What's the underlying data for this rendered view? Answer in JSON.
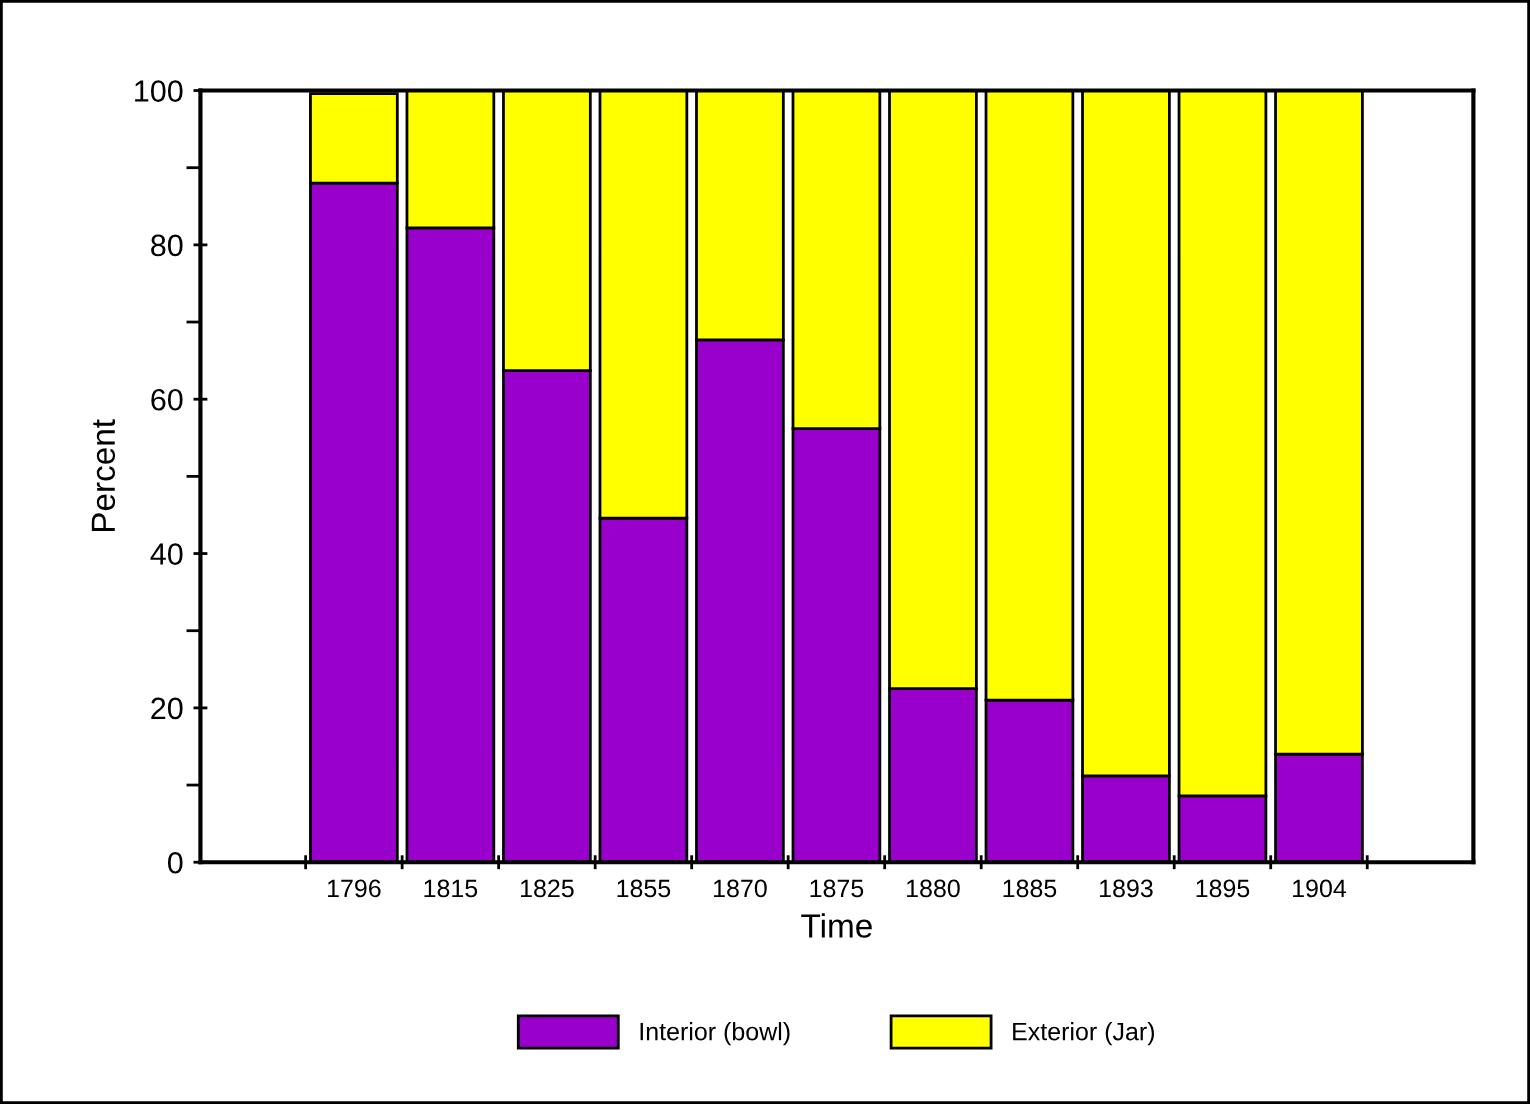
{
  "chart_data": {
    "type": "bar",
    "stacked": true,
    "xlabel": "Time",
    "ylabel": "Percent",
    "categories": [
      "1796",
      "1815",
      "1825",
      "1855",
      "1870",
      "1875",
      "1880",
      "1885",
      "1893",
      "1895",
      "1904"
    ],
    "series": [
      {
        "name": "Interior (bowl)",
        "color": "#9900cc",
        "values": [
          88,
          82.2,
          63.7,
          44.6,
          67.7,
          56.2,
          22.5,
          21,
          11.2,
          8.6,
          14
        ]
      },
      {
        "name": "Exterior (Jar)",
        "color": "#ffff00",
        "values": [
          11.6,
          17.8,
          36.3,
          55.4,
          32.3,
          43.8,
          77.5,
          79,
          88.8,
          91.4,
          86
        ]
      }
    ],
    "ylim": [
      0,
      100
    ],
    "yticks": [
      0,
      20,
      40,
      60,
      80,
      100
    ],
    "grid": false,
    "legend": "bottom"
  }
}
